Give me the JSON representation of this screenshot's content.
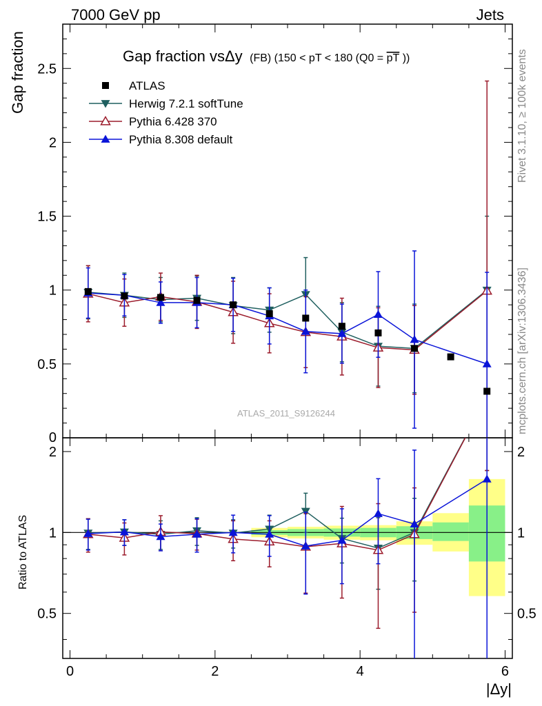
{
  "header": {
    "left": "7000 GeV pp",
    "right": "Jets"
  },
  "side_labels": {
    "rivet": "Rivet 3.1.10, ≥ 100k events",
    "mcplots": "mcplots.cern.ch [arXiv:1306.3436]"
  },
  "chart_data": {
    "type": "scatter",
    "title_main": "Gap fraction vsΔy",
    "title_sub": "(FB) (150 < pT < 180 (Q0 =",
    "title_overline": "pT",
    "title_end": "))",
    "watermark": "ATLAS_2011_S9126244",
    "xlabel": "|Δy|",
    "ylabel": "Gap fraction",
    "ratio_ylabel": "Ratio to ATLAS",
    "xlim": [
      -0.1,
      6.1
    ],
    "ylim": [
      0,
      2.8
    ],
    "ratio_ylim": [
      0.34,
      2.25
    ],
    "x_ticks": [
      0,
      2,
      4,
      6
    ],
    "x_tick_labels": [
      "0",
      "2",
      "4",
      "6"
    ],
    "y_ticks": [
      0.5,
      1,
      1.5,
      2,
      2.5
    ],
    "y_tick_labels": [
      "0.5",
      "1",
      "1.5",
      "2",
      "2.5"
    ],
    "y_zero_label": "0",
    "ratio_y_ticks": [
      0.5,
      1,
      2
    ],
    "ratio_y_tick_labels": [
      "0.5",
      "1",
      "2"
    ],
    "legend_placement": "top-left",
    "data": {
      "name": "ATLAS",
      "x": [
        0.25,
        0.75,
        1.25,
        1.75,
        2.25,
        2.75,
        3.25,
        3.75,
        4.25,
        4.75,
        5.25,
        5.75
      ],
      "y": [
        0.99,
        0.96,
        0.95,
        0.93,
        0.9,
        0.84,
        0.81,
        0.755,
        0.71,
        0.605,
        0.548,
        0.315
      ],
      "color": "#000000"
    },
    "series": [
      {
        "name": "Herwig 7.2.1 softTune",
        "color": "#1f5f5f",
        "marker": "triangle-down",
        "x": [
          0.25,
          0.75,
          1.25,
          1.75,
          2.25,
          2.75,
          3.25,
          3.75,
          4.25,
          4.75,
          5.75
        ],
        "y": [
          0.985,
          0.965,
          0.935,
          0.945,
          0.895,
          0.865,
          0.97,
          0.715,
          0.62,
          0.605,
          1.0
        ],
        "err": [
          0.18,
          0.15,
          0.15,
          0.15,
          0.19,
          0.15,
          0.25,
          0.2,
          0.27,
          0.3,
          0.5
        ]
      },
      {
        "name": "Pythia 6.428 370",
        "color": "#9b1b2b",
        "marker": "triangle-up-open",
        "x": [
          0.25,
          0.75,
          1.25,
          1.75,
          2.25,
          2.75,
          3.25,
          3.75,
          4.25,
          4.75,
          5.75
        ],
        "y": [
          0.975,
          0.915,
          0.955,
          0.92,
          0.85,
          0.775,
          0.715,
          0.685,
          0.61,
          0.595,
          0.995
        ],
        "err": [
          0.19,
          0.16,
          0.16,
          0.18,
          0.21,
          0.2,
          0.24,
          0.26,
          0.27,
          0.3,
          1.42
        ]
      },
      {
        "name": "Pythia 8.308 default",
        "color": "#0a14d8",
        "marker": "triangle-up",
        "x": [
          0.25,
          0.75,
          1.25,
          1.75,
          2.25,
          2.75,
          3.25,
          3.75,
          4.25,
          4.75,
          5.75
        ],
        "y": [
          0.98,
          0.965,
          0.915,
          0.915,
          0.9,
          0.825,
          0.72,
          0.705,
          0.835,
          0.665,
          0.5
        ],
        "err": [
          0.17,
          0.14,
          0.14,
          0.17,
          0.18,
          0.19,
          0.28,
          0.2,
          0.29,
          0.6,
          0.62
        ]
      }
    ],
    "ratio": {
      "series": [
        {
          "name": "Herwig 7.2.1 softTune",
          "y": [
            0.995,
            1.005,
            0.985,
            1.015,
            0.995,
            1.03,
            1.2,
            0.95,
            0.875,
            1.0,
            3.2
          ],
          "err": [
            0.13,
            0.11,
            0.12,
            0.12,
            0.12,
            0.13,
            0.2,
            0.18,
            0.26,
            0.34,
            1.5
          ]
        },
        {
          "name": "Pythia 6.428 370",
          "y": [
            0.985,
            0.955,
            1.005,
            0.99,
            0.945,
            0.925,
            0.885,
            0.91,
            0.86,
            0.985,
            3.2
          ],
          "err": [
            0.14,
            0.13,
            0.15,
            0.13,
            0.16,
            0.18,
            0.29,
            0.34,
            0.42,
            0.48,
            1.5
          ]
        },
        {
          "name": "Pythia 8.308 default",
          "y": [
            0.99,
            1.005,
            0.965,
            0.985,
            1.0,
            0.985,
            0.89,
            0.935,
            1.175,
            1.075,
            1.58
          ],
          "err": [
            0.13,
            0.11,
            0.11,
            0.14,
            0.16,
            0.17,
            0.3,
            0.29,
            0.41,
            0.95,
            1.3
          ]
        }
      ],
      "bands": [
        {
          "x0": 2.5,
          "x1": 3.0,
          "g": [
            0.98,
            1.02
          ],
          "y": [
            0.96,
            1.04
          ]
        },
        {
          "x0": 3.0,
          "x1": 3.5,
          "g": [
            0.97,
            1.03
          ],
          "y": [
            0.95,
            1.05
          ]
        },
        {
          "x0": 3.5,
          "x1": 4.0,
          "g": [
            0.965,
            1.035
          ],
          "y": [
            0.94,
            1.06
          ]
        },
        {
          "x0": 4.0,
          "x1": 4.5,
          "g": [
            0.96,
            1.04
          ],
          "y": [
            0.935,
            1.065
          ]
        },
        {
          "x0": 4.5,
          "x1": 5.0,
          "g": [
            0.945,
            1.055
          ],
          "y": [
            0.9,
            1.1
          ]
        },
        {
          "x0": 5.0,
          "x1": 5.5,
          "g": [
            0.93,
            1.09
          ],
          "y": [
            0.85,
            1.18
          ]
        },
        {
          "x0": 5.5,
          "x1": 6.0,
          "g": [
            0.78,
            1.26
          ],
          "y": [
            0.58,
            1.58
          ]
        }
      ],
      "band_colors": {
        "inner": "#88f088",
        "outer": "#ffff88"
      }
    }
  }
}
